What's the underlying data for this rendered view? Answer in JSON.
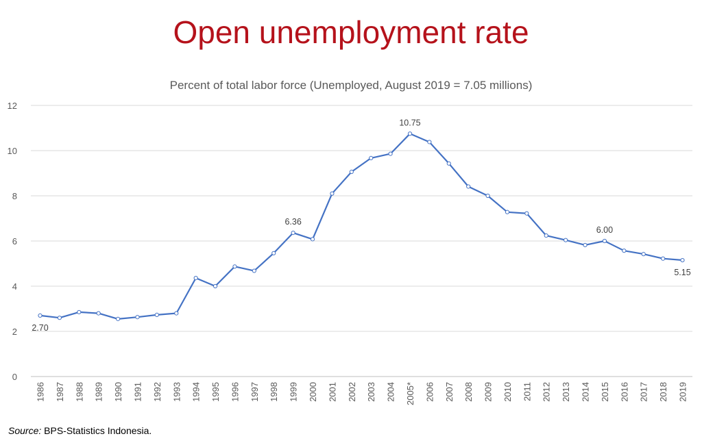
{
  "chart_data": {
    "type": "line",
    "title": "Open unemployment rate",
    "subtitle": "Percent of total labor force (Unemployed, August 2019 = 7.05 millions)",
    "xlabel": "",
    "ylabel": "",
    "categories": [
      "1986",
      "1987",
      "1988",
      "1989",
      "1990",
      "1991",
      "1992",
      "1993",
      "1994",
      "1995",
      "1996",
      "1997",
      "1998",
      "1999",
      "2000",
      "2001",
      "2002",
      "2003",
      "2004",
      "2005*",
      "2006",
      "2007",
      "2008",
      "2009",
      "2010",
      "2011",
      "2012",
      "2013",
      "2014",
      "2015",
      "2016",
      "2017",
      "2018",
      "2019"
    ],
    "series": [
      {
        "values": [
          2.7,
          2.6,
          2.85,
          2.8,
          2.55,
          2.63,
          2.73,
          2.8,
          4.36,
          4.0,
          4.87,
          4.68,
          5.46,
          6.36,
          6.08,
          8.1,
          9.06,
          9.67,
          9.86,
          10.75,
          10.38,
          9.43,
          8.41,
          8.0,
          7.28,
          7.22,
          6.24,
          6.04,
          5.82,
          6.0,
          5.57,
          5.42,
          5.22,
          5.15
        ],
        "color": "#4472c4"
      }
    ],
    "ylim": [
      0,
      12
    ],
    "yticks": [
      0,
      2,
      4,
      6,
      8,
      10,
      12
    ],
    "grid": true,
    "legend": "none",
    "data_labels": [
      {
        "index": 0,
        "text": "2.70",
        "position": "below"
      },
      {
        "index": 13,
        "text": "6.36",
        "position": "above"
      },
      {
        "index": 19,
        "text": "10.75",
        "position": "above"
      },
      {
        "index": 29,
        "text": "6.00",
        "position": "above"
      },
      {
        "index": 33,
        "text": "5.15",
        "position": "below"
      }
    ]
  },
  "source": {
    "label": "Source:",
    "text": " BPS-Statistics Indonesia."
  }
}
